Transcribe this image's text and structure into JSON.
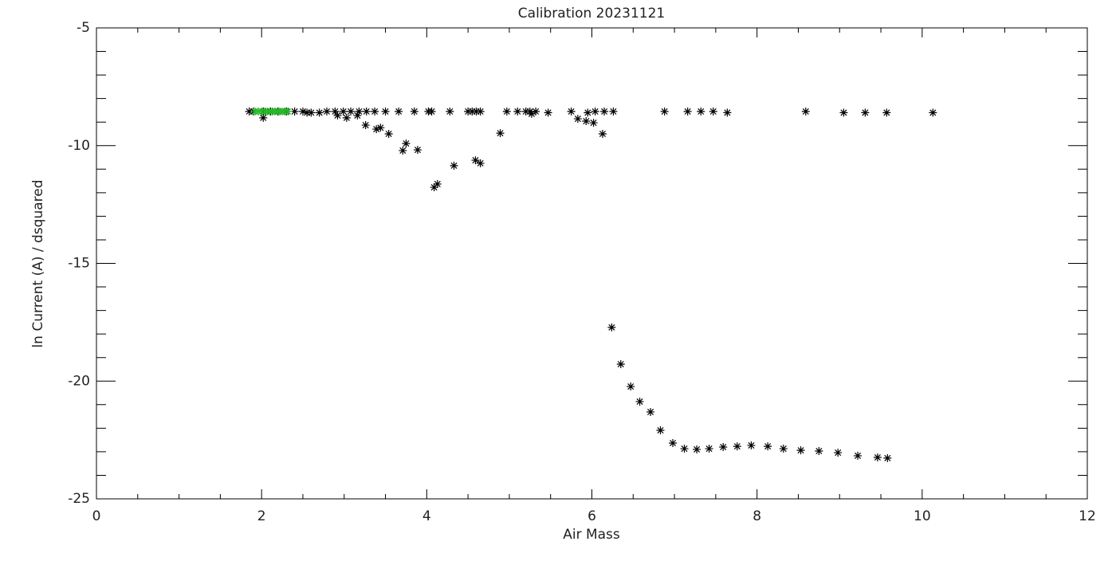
{
  "chart_data": {
    "type": "scatter",
    "title": "Calibration 20231121",
    "x_label": "Air Mass",
    "y_label": "ln Current (A) / dsquared",
    "xlim": [
      0,
      12
    ],
    "xticks": [
      0,
      2,
      4,
      6,
      8,
      10,
      12
    ],
    "ylim": [
      -25,
      -5
    ],
    "yticks": [
      -25,
      -20,
      -15,
      -10,
      -5
    ],
    "marker": "asterisk",
    "series": [
      {
        "color": "#000000",
        "x": [
          1.85,
          1.9,
          2.02,
          2.11,
          2.2,
          2.3,
          2.4,
          2.5,
          2.55,
          2.6,
          2.7,
          2.79,
          2.89,
          2.99,
          3.08,
          3.18,
          3.27,
          3.37,
          3.5,
          3.66,
          3.85,
          4.02,
          4.06,
          4.28,
          4.5,
          4.55,
          4.6,
          4.65,
          4.97,
          5.1,
          5.2,
          5.25,
          5.32,
          5.47,
          5.75,
          5.95,
          6.04,
          6.15,
          6.26,
          6.88,
          7.16,
          7.32,
          7.47,
          7.64,
          8.59,
          9.05,
          9.31,
          9.57,
          10.13,
          2.02,
          2.92,
          3.03,
          3.16,
          3.26,
          3.39,
          3.44,
          3.54,
          3.71,
          3.75,
          3.89,
          4.09,
          4.13,
          4.33,
          4.59,
          4.65,
          4.89,
          5.27,
          5.83,
          5.93,
          6.02,
          6.13,
          6.24,
          6.35,
          6.47,
          6.58,
          6.71,
          6.83,
          6.98,
          7.12,
          7.27,
          7.42,
          7.59,
          7.76,
          7.93,
          8.13,
          8.32,
          8.53,
          8.75,
          8.98,
          9.22,
          9.46,
          9.58
        ],
        "values": [
          -8.55,
          -8.55,
          -8.55,
          -8.55,
          -8.55,
          -8.55,
          -8.55,
          -8.55,
          -8.6,
          -8.6,
          -8.6,
          -8.55,
          -8.55,
          -8.55,
          -8.55,
          -8.55,
          -8.55,
          -8.55,
          -8.55,
          -8.55,
          -8.55,
          -8.55,
          -8.55,
          -8.55,
          -8.55,
          -8.55,
          -8.55,
          -8.55,
          -8.55,
          -8.55,
          -8.55,
          -8.55,
          -8.55,
          -8.6,
          -8.55,
          -8.6,
          -8.55,
          -8.55,
          -8.55,
          -8.55,
          -8.55,
          -8.55,
          -8.55,
          -8.6,
          -8.55,
          -8.6,
          -8.6,
          -8.6,
          -8.6,
          -8.82,
          -8.72,
          -8.82,
          -8.72,
          -9.13,
          -9.3,
          -9.24,
          -9.5,
          -10.21,
          -9.91,
          -10.18,
          -11.77,
          -11.63,
          -10.85,
          -10.62,
          -10.75,
          -9.47,
          -8.65,
          -8.86,
          -8.96,
          -9.03,
          -9.5,
          -17.72,
          -19.28,
          -20.23,
          -20.87,
          -21.31,
          -22.09,
          -22.63,
          -22.87,
          -22.9,
          -22.87,
          -22.8,
          -22.77,
          -22.73,
          -22.77,
          -22.87,
          -22.94,
          -22.97,
          -23.04,
          -23.17,
          -23.24,
          -23.27
        ]
      },
      {
        "color": "#22bb22",
        "x": [
          1.92,
          1.96,
          2.0,
          2.04,
          2.07,
          2.1,
          2.13,
          2.16,
          2.19,
          2.22,
          2.25,
          2.28,
          2.32
        ],
        "values": [
          -8.55,
          -8.55,
          -8.55,
          -8.55,
          -8.55,
          -8.55,
          -8.55,
          -8.55,
          -8.55,
          -8.55,
          -8.55,
          -8.55,
          -8.55
        ]
      }
    ]
  }
}
